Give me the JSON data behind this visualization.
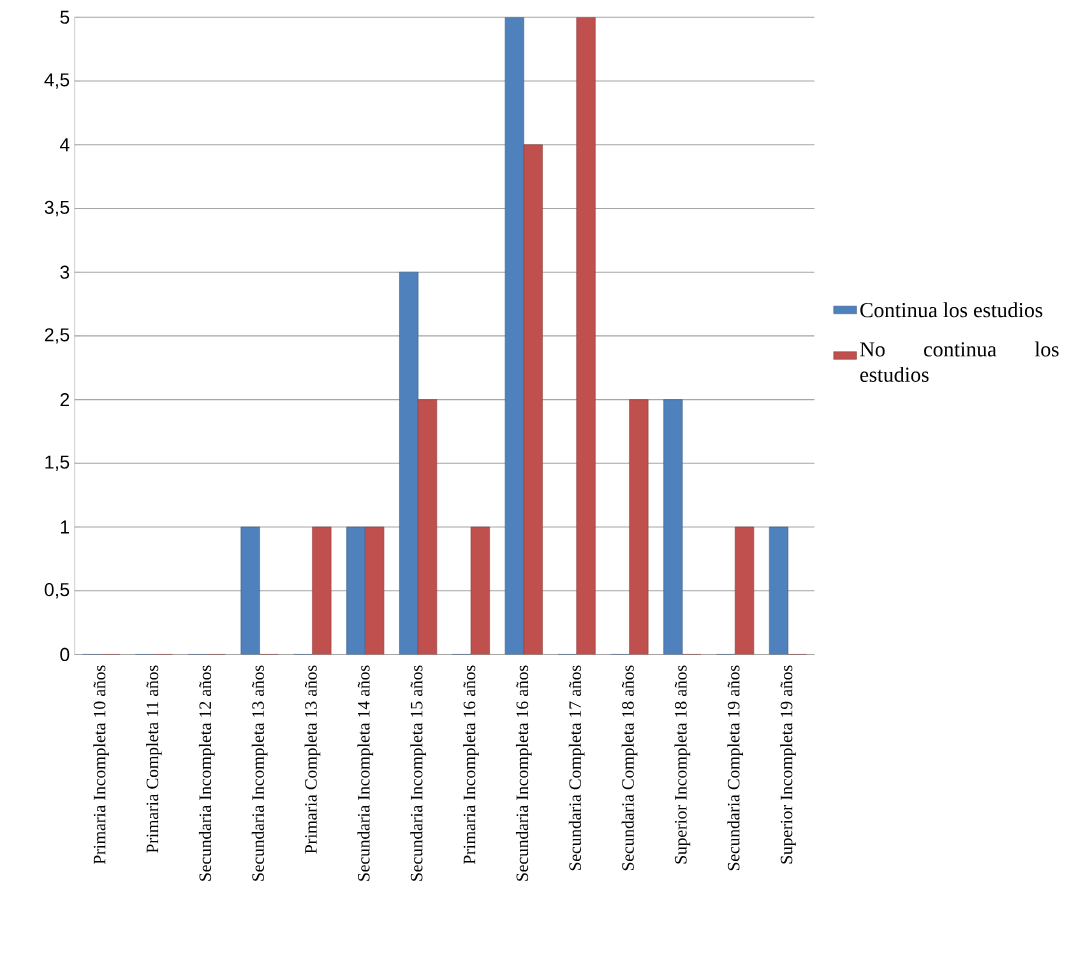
{
  "chart_data": {
    "type": "bar",
    "categories": [
      "Primaria Incompleta 10 años",
      "Primaria Completa 11 años",
      "Secundaria Incompleta 12 años",
      "Secundaria Incompleta 13 años",
      "Primaria Completa 13 años",
      "Secundaria Incompleta 14 años",
      "Secundaria Incompleta 15 años",
      "Primaria Incompleta 16 años",
      "Secundaria Incompleta 16 años",
      "Secundaria Completa 17 años",
      "Secundaria Completa 18 años",
      "Superior Incompleta 18 años",
      "Secundaria Completa 19 años",
      "Superior Incompleta 19 años"
    ],
    "series": [
      {
        "name": "Continua los estudios",
        "color": "#4f81bd",
        "values": [
          0,
          0,
          0,
          1,
          0,
          1,
          3,
          0,
          5,
          0,
          0,
          2,
          0,
          1
        ]
      },
      {
        "name": "No continua los estudios",
        "color": "#c0504d",
        "values": [
          0,
          0,
          0,
          0,
          1,
          1,
          2,
          1,
          4,
          5,
          2,
          0,
          1,
          0
        ]
      }
    ],
    "ylim": [
      0,
      5
    ],
    "yticks": [
      0,
      {
        "value": 0.5,
        "label": "0,5"
      },
      1,
      {
        "value": 1.5,
        "label": "1,5"
      },
      2,
      {
        "value": 2.5,
        "label": "2,5"
      },
      3,
      {
        "value": 3.5,
        "label": "3,5"
      },
      4,
      {
        "value": 4.5,
        "label": "4,5"
      },
      5
    ],
    "grid": "y",
    "legend": "right"
  }
}
